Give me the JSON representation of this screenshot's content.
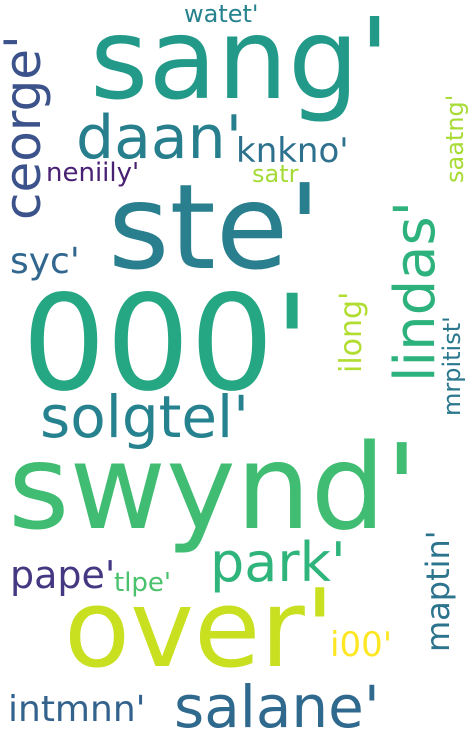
{
  "words": [
    {
      "id": "sang",
      "text": "sang'",
      "color": "#239a89"
    },
    {
      "id": "ste",
      "text": "ste'",
      "color": "#2a7f8e"
    },
    {
      "id": "000",
      "text": "000'",
      "color": "#25a784"
    },
    {
      "id": "swynd",
      "text": "swynd'",
      "color": "#40bd72"
    },
    {
      "id": "over",
      "text": "over'",
      "color": "#c8e020"
    },
    {
      "id": "salane",
      "text": "salane'",
      "color": "#30698e"
    },
    {
      "id": "daan",
      "text": "daan'",
      "color": "#277f8e"
    },
    {
      "id": "solgtel",
      "text": "solgtel'",
      "color": "#26828e"
    },
    {
      "id": "park",
      "text": "park'",
      "color": "#2fb47c"
    },
    {
      "id": "ceorge",
      "text": "ceorge'",
      "color": "#3b528b"
    },
    {
      "id": "lindas",
      "text": "lindas'",
      "color": "#2db27d"
    },
    {
      "id": "knkno",
      "text": "knkno'",
      "color": "#2d718e"
    },
    {
      "id": "neniily",
      "text": "neniily'",
      "color": "#482173"
    },
    {
      "id": "satr",
      "text": "satr",
      "color": "#a5db36"
    },
    {
      "id": "watet",
      "text": "watet'",
      "color": "#26828e"
    },
    {
      "id": "saatng",
      "text": "saatng'",
      "color": "#a8db34"
    },
    {
      "id": "syc",
      "text": "syc'",
      "color": "#31678e"
    },
    {
      "id": "ilong",
      "text": "ilong'",
      "color": "#b0dd2f"
    },
    {
      "id": "mrpitist",
      "text": "mrpitist'",
      "color": "#2a778e"
    },
    {
      "id": "pape",
      "text": "pape'",
      "color": "#453781"
    },
    {
      "id": "tlpe",
      "text": "tlpe'",
      "color": "#4ac16d"
    },
    {
      "id": "maptin",
      "text": "maptin'",
      "color": "#2c738e"
    },
    {
      "id": "i00",
      "text": "i00'",
      "color": "#fde725"
    },
    {
      "id": "intmnn",
      "text": "intmnn'",
      "color": "#33638d"
    }
  ]
}
